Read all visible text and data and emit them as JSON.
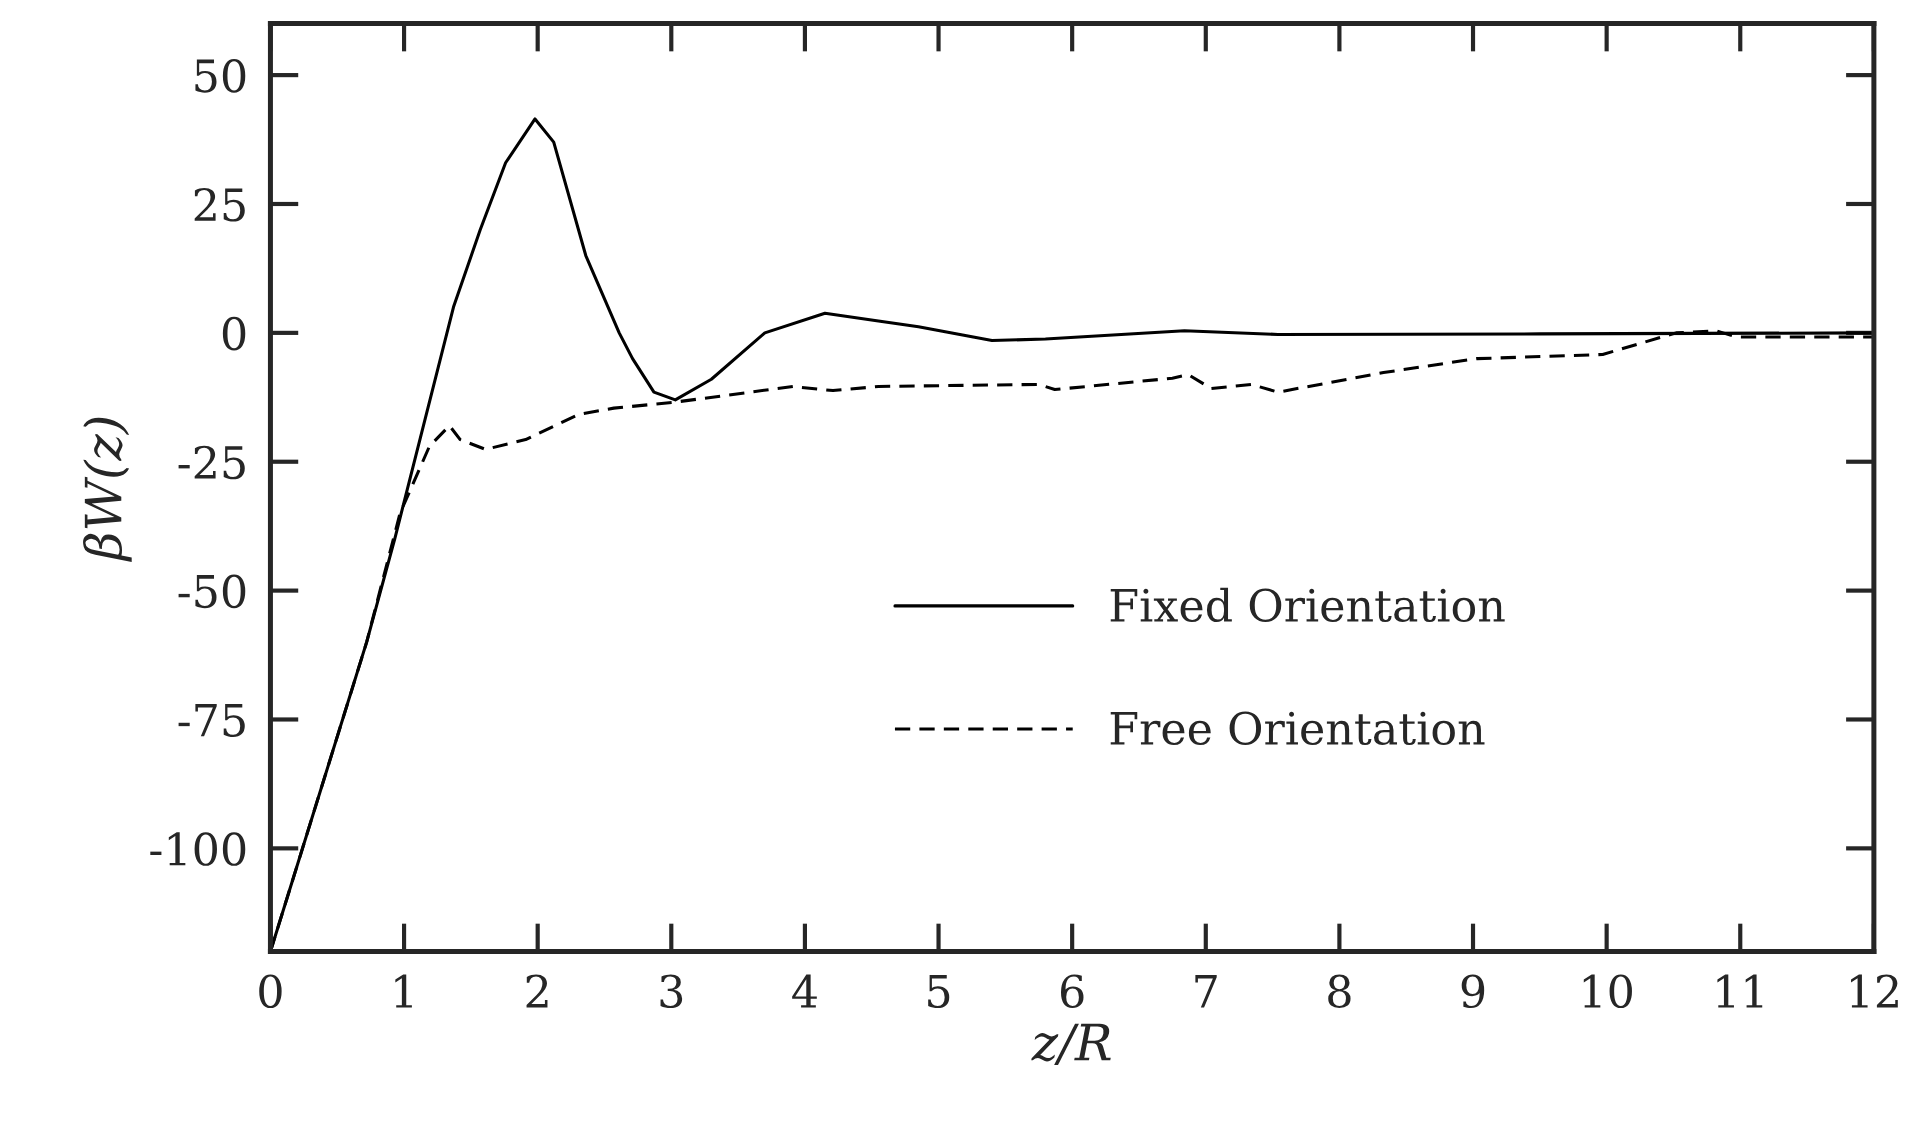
{
  "chart_data": {
    "type": "line",
    "xlabel": "z/R",
    "ylabel": "βW(z)",
    "xlim": [
      0,
      12
    ],
    "ylim": [
      -120,
      60
    ],
    "xticks": [
      0,
      1,
      2,
      3,
      4,
      5,
      6,
      7,
      8,
      9,
      10,
      11,
      12
    ],
    "yticks": [
      -100,
      -75,
      -50,
      -25,
      0,
      25,
      50
    ],
    "grid": false,
    "legend": "bottom",
    "marker": "none",
    "series": [
      {
        "name": "Fixed Orientation",
        "color": "#000000",
        "line_style": "solid",
        "x": [
          0,
          0.72,
          0.93,
          1.37,
          1.57,
          1.76,
          1.98,
          2.12,
          2.36,
          2.61,
          2.71,
          2.87,
          3.03,
          3.3,
          3.7,
          4.15,
          4.55,
          4.85,
          5.4,
          5.8,
          6.84,
          7.54,
          9.5,
          12
        ],
        "values": [
          -120,
          -60,
          -40,
          5,
          20,
          33,
          41.5,
          37,
          15,
          0,
          -5,
          -11.5,
          -13,
          -9,
          0,
          3.8,
          2.3,
          1.2,
          -1.5,
          -1.2,
          0.4,
          -0.3,
          -0.2,
          0
        ]
      },
      {
        "name": "Free Orientation",
        "color": "#000000",
        "line_style": "dashed",
        "x": [
          0,
          0.72,
          0.97,
          1.19,
          1.34,
          1.42,
          1.61,
          1.91,
          2.31,
          2.57,
          3.01,
          3.91,
          4.21,
          4.55,
          5.75,
          5.87,
          6.75,
          6.87,
          7.04,
          7.34,
          7.54,
          8.33,
          9.03,
          9.97,
          10.52,
          10.82,
          10.97,
          12
        ],
        "values": [
          -120,
          -60,
          -35,
          -22,
          -18,
          -20.7,
          -22.6,
          -20.7,
          -15.8,
          -14.6,
          -13.5,
          -10.4,
          -11.2,
          -10.4,
          -10,
          -11,
          -8.8,
          -8.1,
          -10.8,
          -10,
          -11.5,
          -7.7,
          -5,
          -4.2,
          0,
          0.4,
          -0.8,
          -0.8
        ]
      }
    ]
  }
}
